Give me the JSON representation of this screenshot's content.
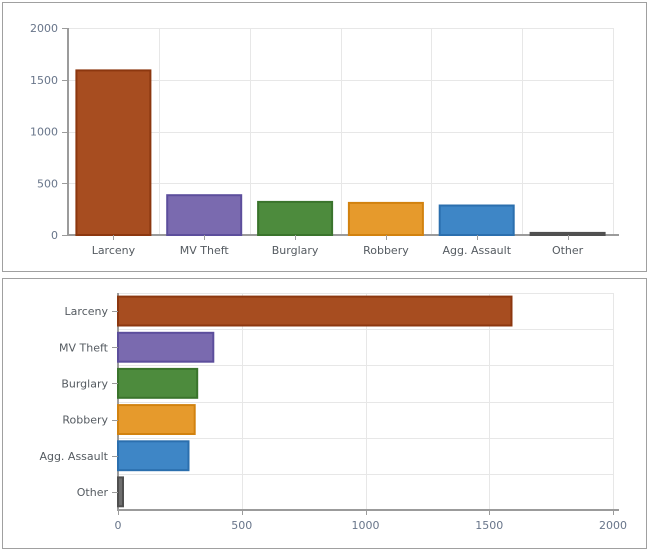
{
  "colors": {
    "background": "#ffffff",
    "panel_border": "#a0a0a0",
    "grid": "#e7e7e7",
    "axis": "#9b9b9b",
    "value_label": "#68758a",
    "category_label": "#555b61"
  },
  "chart_data": [
    {
      "type": "bar",
      "orientation": "vertical",
      "title": "",
      "legend": "none",
      "grid": true,
      "categories": [
        "Larceny",
        "MV Theft",
        "Burglary",
        "Robbery",
        "Agg. Assault",
        "Other"
      ],
      "values": [
        1590,
        385,
        320,
        310,
        285,
        20
      ],
      "bar_colors": [
        "#a74d20",
        "#7a6aaf",
        "#4d8b3d",
        "#e69a2c",
        "#3e86c6",
        "#6e6e6e"
      ],
      "bar_border_colors": [
        "#8c370f",
        "#5c4e9c",
        "#3a742c",
        "#d2820f",
        "#2b6fae",
        "#4f4f4f"
      ],
      "xlabel": "",
      "ylabel": "",
      "value_axis": {
        "ticks": [
          0,
          500,
          1000,
          1500,
          2000
        ],
        "range": [
          0,
          2000
        ]
      }
    },
    {
      "type": "bar",
      "orientation": "horizontal",
      "title": "",
      "legend": "none",
      "grid": true,
      "categories": [
        "Larceny",
        "MV Theft",
        "Burglary",
        "Robbery",
        "Agg. Assault",
        "Other"
      ],
      "values": [
        1590,
        385,
        320,
        310,
        285,
        20
      ],
      "bar_colors": [
        "#a74d20",
        "#7a6aaf",
        "#4d8b3d",
        "#e69a2c",
        "#3e86c6",
        "#6e6e6e"
      ],
      "bar_border_colors": [
        "#8c370f",
        "#5c4e9c",
        "#3a742c",
        "#d2820f",
        "#2b6fae",
        "#4f4f4f"
      ],
      "xlabel": "",
      "ylabel": "",
      "value_axis": {
        "ticks": [
          0,
          500,
          1000,
          1500,
          2000
        ],
        "range": [
          0,
          2000
        ]
      }
    }
  ]
}
